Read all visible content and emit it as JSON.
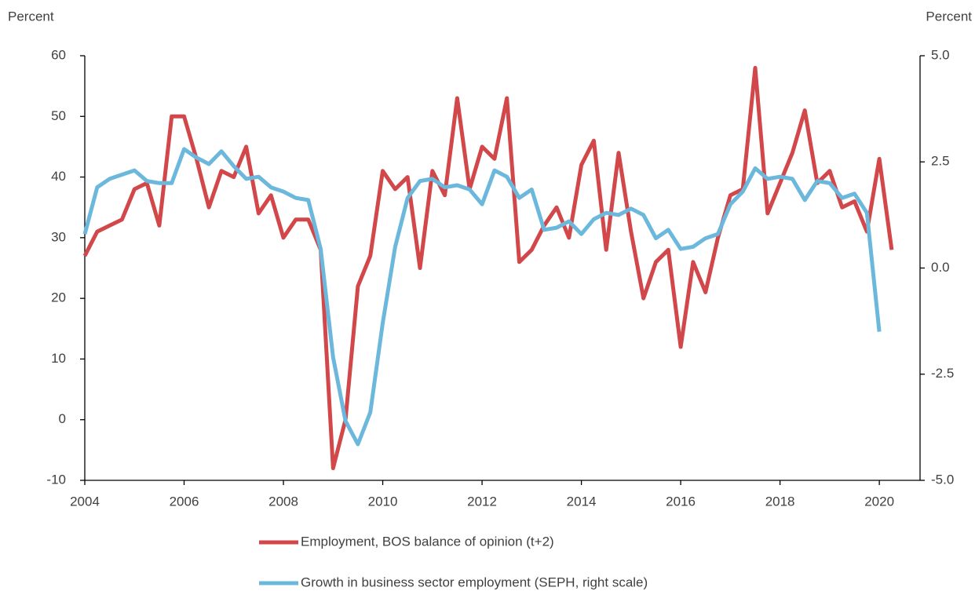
{
  "chart_data": {
    "type": "line",
    "y_label": "Percent",
    "y2_label": "Percent",
    "x": [
      2004,
      2004.25,
      2004.5,
      2004.75,
      2005,
      2005.25,
      2005.5,
      2005.75,
      2006,
      2006.25,
      2006.5,
      2006.75,
      2007,
      2007.25,
      2007.5,
      2007.75,
      2008,
      2008.25,
      2008.5,
      2008.75,
      2009,
      2009.25,
      2009.5,
      2009.75,
      2010,
      2010.25,
      2010.5,
      2010.75,
      2011,
      2011.25,
      2011.5,
      2011.75,
      2012,
      2012.25,
      2012.5,
      2012.75,
      2013,
      2013.25,
      2013.5,
      2013.75,
      2014,
      2014.25,
      2014.5,
      2014.75,
      2015,
      2015.25,
      2015.5,
      2015.75,
      2016,
      2016.25,
      2016.5,
      2016.75,
      2017,
      2017.25,
      2017.5,
      2017.75,
      2018,
      2018.25,
      2018.5,
      2018.75,
      2019,
      2019.25,
      2019.5,
      2019.75,
      2020,
      2020.25
    ],
    "series": [
      {
        "name": "Employment, BOS balance of opinion (t+2)",
        "color": "#d1474a",
        "axis": "y",
        "values": [
          27,
          31,
          32,
          33,
          38,
          39,
          32,
          50,
          50,
          43,
          35,
          41,
          40,
          45,
          34,
          37,
          30,
          33,
          33,
          28,
          -8,
          0,
          22,
          27,
          41,
          38,
          40,
          25,
          41,
          37,
          53,
          38,
          45,
          43,
          53,
          26,
          28,
          32,
          35,
          30,
          42,
          46,
          28,
          44,
          31,
          20,
          26,
          28,
          12,
          26,
          21,
          30,
          37,
          38,
          58,
          34,
          39,
          44,
          51,
          39,
          41,
          35,
          36,
          31,
          43,
          28
        ]
      },
      {
        "name": "Growth in business sector employment (SEPH, right scale)",
        "color": "#6cb8dc",
        "axis": "y2",
        "values": [
          0.8,
          1.9,
          2.1,
          2.2,
          2.3,
          2.05,
          2.0,
          2.0,
          2.8,
          2.6,
          2.45,
          2.75,
          2.4,
          2.1,
          2.15,
          1.9,
          1.8,
          1.65,
          1.6,
          0.45,
          -2.1,
          -3.6,
          -4.15,
          -3.4,
          -1.3,
          0.5,
          1.65,
          2.05,
          2.1,
          1.9,
          1.95,
          1.85,
          1.5,
          2.3,
          2.15,
          1.65,
          1.85,
          0.9,
          0.95,
          1.1,
          0.8,
          1.15,
          1.3,
          1.25,
          1.4,
          1.25,
          0.7,
          0.9,
          0.45,
          0.5,
          0.7,
          0.8,
          1.5,
          1.8,
          2.35,
          2.1,
          2.15,
          2.1,
          1.6,
          2.05,
          2.0,
          1.65,
          1.75,
          1.3,
          -1.5,
          null
        ]
      }
    ],
    "xlim": [
      2004,
      2020.82
    ],
    "xticks": [
      2004,
      2006,
      2008,
      2010,
      2012,
      2014,
      2016,
      2018,
      2020
    ],
    "ylim": [
      -10,
      60
    ],
    "yticks": [
      -10,
      0,
      10,
      20,
      30,
      40,
      50,
      60
    ],
    "y2lim": [
      -5,
      5
    ],
    "y2ticks": [
      {
        "value": -5,
        "label": "-5.0"
      },
      {
        "value": -2.5,
        "label": "-2.5"
      },
      {
        "value": 0,
        "label": "0.0"
      },
      {
        "value": 2.5,
        "label": "2.5"
      },
      {
        "value": 5,
        "label": "5.0"
      }
    ],
    "legend": "bottom"
  }
}
